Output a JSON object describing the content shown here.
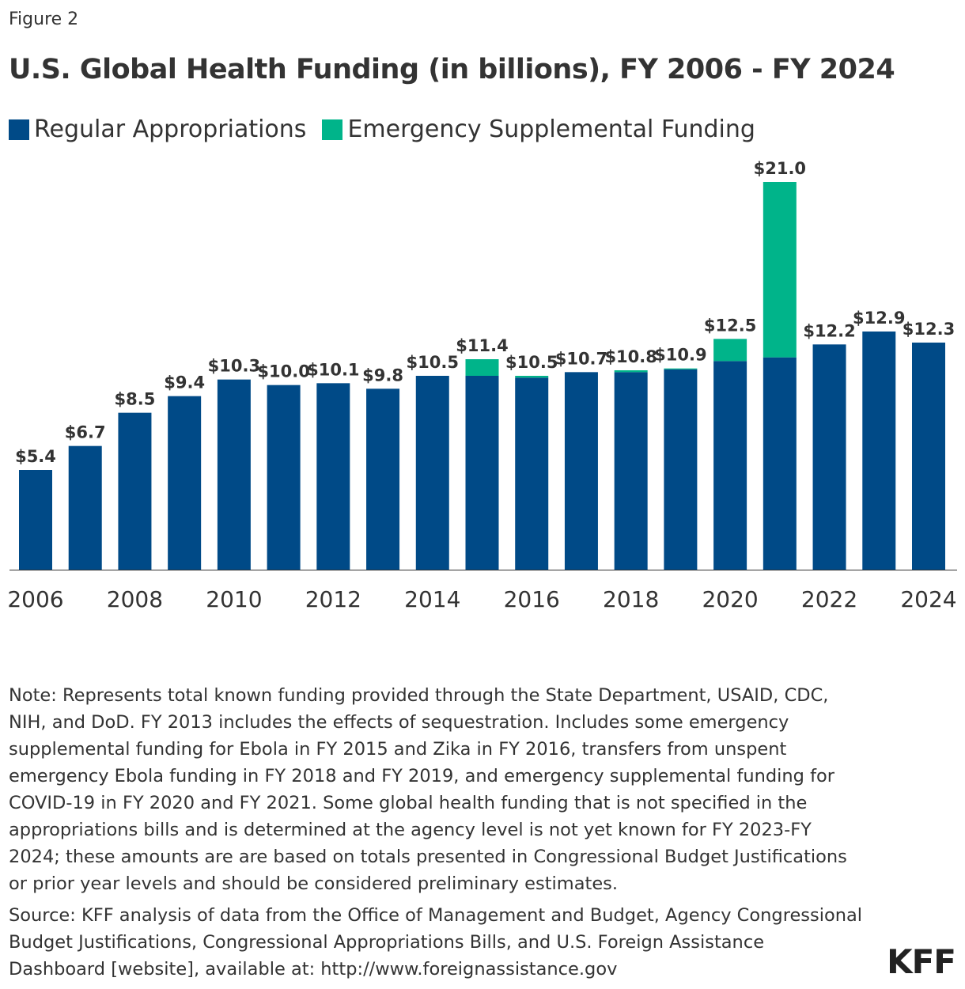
{
  "figure_label": "Figure 2",
  "chart_data": {
    "type": "bar",
    "stacked": true,
    "title": "U.S. Global Health Funding (in billions), FY 2006 - FY 2024",
    "categories": [
      "2006",
      "2007",
      "2008",
      "2009",
      "2010",
      "2011",
      "2012",
      "2013",
      "2014",
      "2015",
      "2016",
      "2017",
      "2018",
      "2019",
      "2020",
      "2021",
      "2022",
      "2023",
      "2024"
    ],
    "x_tick_labels": [
      "2006",
      "2008",
      "2010",
      "2012",
      "2014",
      "2016",
      "2018",
      "2020",
      "2022",
      "2024"
    ],
    "series": [
      {
        "name": "Regular Appropriations",
        "color": "#004a87",
        "values": [
          5.4,
          6.7,
          8.5,
          9.4,
          10.3,
          10.0,
          10.1,
          9.8,
          10.5,
          10.5,
          10.4,
          10.7,
          10.7,
          10.85,
          11.3,
          11.5,
          12.2,
          12.9,
          12.3
        ]
      },
      {
        "name": "Emergency Supplemental Funding",
        "color": "#00b48a",
        "values": [
          0,
          0,
          0,
          0,
          0,
          0,
          0,
          0,
          0,
          0.9,
          0.1,
          0,
          0.1,
          0.05,
          1.2,
          9.5,
          0,
          0,
          0
        ]
      }
    ],
    "data_labels": [
      "$5.4",
      "$6.7",
      "$8.5",
      "$9.4",
      "$10.3",
      "$10.0",
      "$10.1",
      "$9.8",
      "$10.5",
      "$11.4",
      "$10.5",
      "$10.7",
      "$10.8",
      "$10.9",
      "$12.5",
      "$21.0",
      "$12.2",
      "$12.9",
      "$12.3"
    ],
    "ylim": [
      0,
      21
    ],
    "grid": false,
    "legend_position": "top-left"
  },
  "note": "Note: Represents total known funding provided through the State Department, USAID, CDC, NIH, and DoD. FY 2013 includes the effects of sequestration. Includes some emergency supplemental funding for Ebola in FY 2015 and Zika in FY 2016, transfers from unspent emergency Ebola funding in FY 2018 and FY 2019, and emergency supplemental funding for COVID-19 in FY 2020 and FY 2021. Some global health funding that is not specified in the appropriations bills and is determined at the agency level is not yet known for FY 2023-FY 2024; these amounts are are based on totals presented in Congressional Budget Justifications or prior year levels and should be considered preliminary estimates.",
  "source": "Source: KFF analysis of data from the Office of Management and Budget, Agency Congressional Budget Justifications, Congressional Appropriations Bills, and U.S. Foreign Assistance Dashboard [website], available at: http://www.foreignassistance.gov",
  "logo": "KFF"
}
